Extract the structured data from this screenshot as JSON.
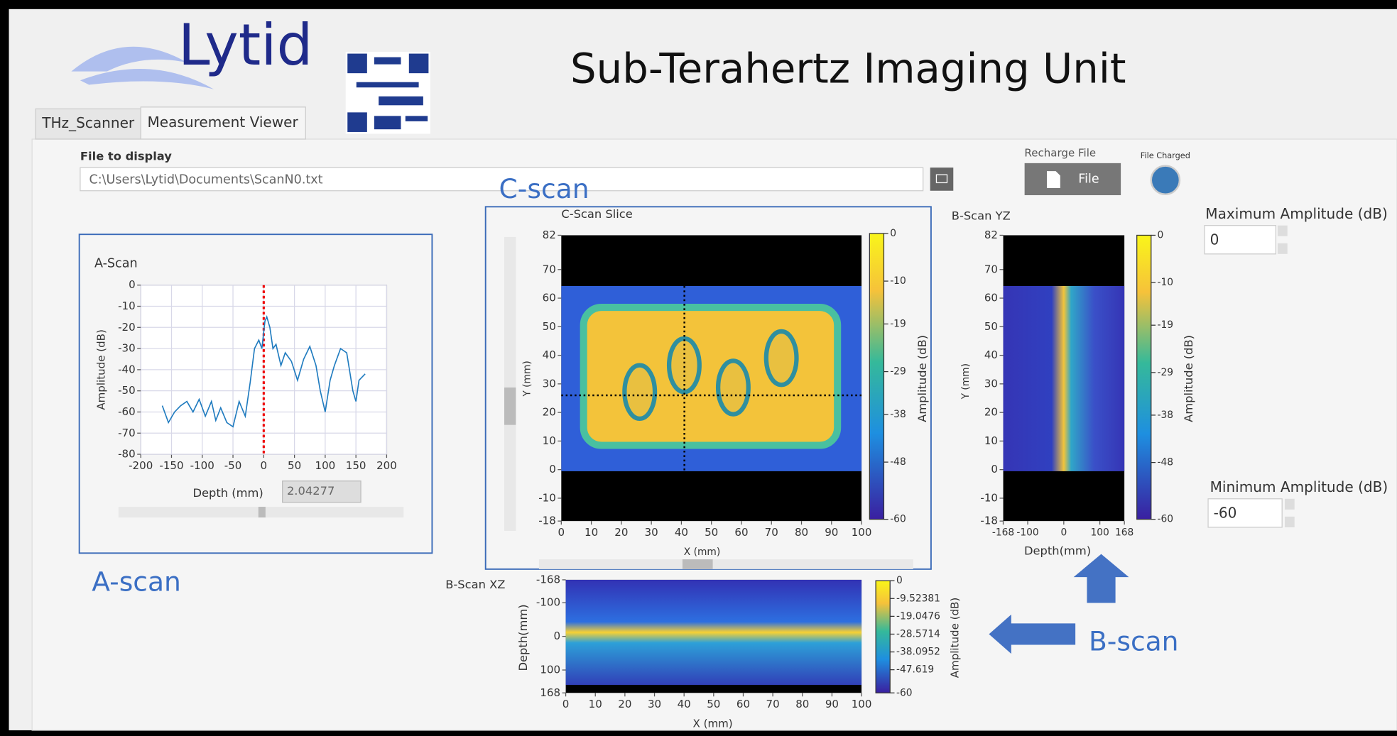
{
  "header": {
    "logo": "Lytid",
    "title": "Sub-Terahertz Imaging Unit"
  },
  "tabs": [
    "THz_Scanner",
    "Measurement Viewer"
  ],
  "file": {
    "label": "File to display",
    "path": "C:\\Users\\Lytid\\Documents\\ScanN0.txt"
  },
  "recharge": {
    "label": "Recharge File",
    "button": "File",
    "indicator": "File Charged"
  },
  "max_amplitude": {
    "label": "Maximum Amplitude (dB)",
    "value": "0"
  },
  "min_amplitude": {
    "label": "Minimum Amplitude (dB)",
    "value": "-60"
  },
  "annotations": {
    "c_scan": "C-scan",
    "a_scan": "A-scan",
    "b_scan": "B-scan"
  },
  "a_scan": {
    "title": "A-Scan",
    "x_label": "Depth (mm)",
    "y_label": "Amplitude (dB)",
    "xlim": [
      -200,
      200
    ],
    "xticks": [
      -200,
      -150,
      -100,
      -50,
      0,
      50,
      100,
      150,
      200
    ],
    "ylim": [
      -80,
      0
    ],
    "yticks": [
      -80,
      -70,
      -60,
      -50,
      -40,
      -30,
      -20,
      -10,
      0
    ],
    "grid": true,
    "color": "#1f7bbf",
    "cursor": 0,
    "cursor_readout": "2.04277",
    "x": [
      -165,
      -155,
      -145,
      -135,
      -125,
      -115,
      -105,
      -95,
      -85,
      -78,
      -70,
      -60,
      -50,
      -40,
      -30,
      -22,
      -15,
      -8,
      -3,
      2,
      5,
      10,
      15,
      20,
      28,
      35,
      45,
      55,
      65,
      75,
      85,
      92,
      100,
      108,
      115,
      125,
      135,
      145,
      150,
      155,
      165
    ],
    "values": [
      -57,
      -65,
      -60,
      -57,
      -55,
      -60,
      -54,
      -62,
      -55,
      -64,
      -58,
      -65,
      -67,
      -55,
      -62,
      -46,
      -30,
      -26,
      -30,
      -17,
      -15,
      -20,
      -30,
      -28,
      -38,
      -32,
      -36,
      -45,
      -35,
      -29,
      -38,
      -50,
      -60,
      -45,
      -38,
      -30,
      -32,
      -50,
      -55,
      -45,
      -42
    ]
  },
  "c_scan": {
    "title": "C-Scan Slice",
    "x_label": "X (mm)",
    "y_label": "Y (mm)",
    "xlim": [
      0,
      100
    ],
    "xticks": [
      0,
      10,
      20,
      30,
      40,
      50,
      60,
      70,
      80,
      90,
      100
    ],
    "ylim": [
      -18,
      82
    ],
    "yticks": [
      -18,
      -10,
      0,
      10,
      20,
      30,
      40,
      50,
      60,
      70,
      82
    ],
    "cursor_x": 41,
    "cursor_y": 26,
    "colorbar_label": "Amplitude (dB)",
    "colorbar_lim": [
      -60,
      0
    ],
    "colorbar_ticks": [
      0,
      -10,
      -19,
      -29,
      -38,
      -48,
      -60
    ]
  },
  "b_scan_yz": {
    "title": "B-Scan YZ",
    "x_label": "Depth(mm)",
    "y_label": "Y (mm)",
    "xlim": [
      -168,
      168
    ],
    "xticks": [
      -168,
      -100,
      0,
      100,
      168
    ],
    "ylim": [
      -18,
      82
    ],
    "yticks": [
      -18,
      -10,
      0,
      10,
      20,
      30,
      40,
      50,
      60,
      70,
      82
    ],
    "colorbar_label": "Amplitude (dB)",
    "colorbar_lim": [
      -60,
      0
    ],
    "colorbar_ticks": [
      0,
      -10,
      -19,
      -29,
      -38,
      -48,
      -60
    ]
  },
  "b_scan_xz": {
    "title": "B-Scan XZ",
    "x_label": "X (mm)",
    "y_label": "Depth(mm)",
    "xlim": [
      0,
      100
    ],
    "xticks": [
      0,
      10,
      20,
      30,
      40,
      50,
      60,
      70,
      80,
      90,
      100
    ],
    "ylim": [
      168,
      -168
    ],
    "yticks": [
      -168,
      -100,
      0,
      100,
      168
    ],
    "colorbar_label": "Amplitude (dB)",
    "colorbar_lim": [
      -60,
      0
    ],
    "colorbar_ticks": [
      0,
      -9.52381,
      -19.0476,
      -28.5714,
      -38.0952,
      -47.619,
      -60
    ]
  }
}
